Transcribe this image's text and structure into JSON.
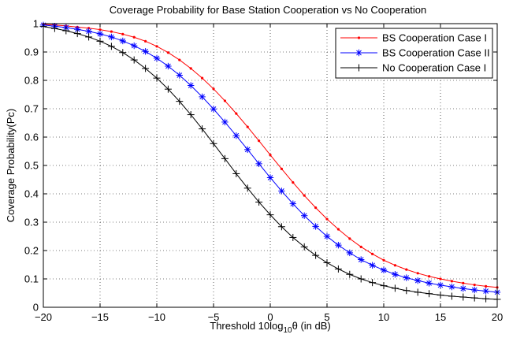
{
  "chart_data": {
    "type": "line",
    "title": "Coverage Probability for Base Station Cooperation vs No Cooperation",
    "xlabel": {
      "prefix": "Threshold 10log",
      "sub": "10",
      "suffix": "θ (in dB)"
    },
    "ylabel": "Coverage Probability(Pc)",
    "xlim": [
      -20,
      20
    ],
    "ylim": [
      0,
      1
    ],
    "x_ticks": [
      -20,
      -15,
      -10,
      -5,
      0,
      5,
      10,
      15,
      20
    ],
    "y_ticks": [
      0,
      0.1,
      0.2,
      0.3,
      0.4,
      0.5,
      0.6,
      0.7,
      0.8,
      0.9,
      1
    ],
    "x_tick_labels": [
      "−20",
      "−15",
      "−10",
      "−5",
      "0",
      "5",
      "10",
      "15",
      "20"
    ],
    "y_tick_labels": [
      "0",
      "0.1",
      "0.2",
      "0.3",
      "0.4",
      "0.5",
      "0.6",
      "0.7",
      "0.8",
      "0.9",
      "1"
    ],
    "grid": true,
    "legend_position": "top-right",
    "x": [
      -20,
      -19,
      -18,
      -17,
      -16,
      -15,
      -14,
      -13,
      -12,
      -11,
      -10,
      -9,
      -8,
      -7,
      -6,
      -5,
      -4,
      -3,
      -2,
      -1,
      0,
      1,
      2,
      3,
      4,
      5,
      6,
      7,
      8,
      9,
      10,
      11,
      12,
      13,
      14,
      15,
      16,
      17,
      18,
      19,
      20
    ],
    "series": [
      {
        "name": "BS Cooperation Case I",
        "color": "#ff0000",
        "marker": "dot",
        "values": [
          0.998,
          0.995,
          0.992,
          0.988,
          0.984,
          0.979,
          0.972,
          0.963,
          0.952,
          0.938,
          0.92,
          0.898,
          0.872,
          0.842,
          0.808,
          0.77,
          0.728,
          0.683,
          0.636,
          0.587,
          0.537,
          0.488,
          0.44,
          0.394,
          0.351,
          0.311,
          0.275,
          0.242,
          0.213,
          0.188,
          0.166,
          0.148,
          0.133,
          0.12,
          0.109,
          0.1,
          0.092,
          0.085,
          0.079,
          0.074,
          0.07
        ]
      },
      {
        "name": "BS Cooperation Case II",
        "color": "#0000ff",
        "marker": "asterisk",
        "values": [
          0.995,
          0.991,
          0.986,
          0.98,
          0.973,
          0.964,
          0.953,
          0.939,
          0.922,
          0.902,
          0.878,
          0.85,
          0.818,
          0.782,
          0.742,
          0.699,
          0.653,
          0.605,
          0.556,
          0.506,
          0.457,
          0.41,
          0.365,
          0.323,
          0.285,
          0.25,
          0.219,
          0.192,
          0.168,
          0.148,
          0.131,
          0.116,
          0.104,
          0.094,
          0.085,
          0.078,
          0.072,
          0.066,
          0.061,
          0.057,
          0.053
        ]
      },
      {
        "name": "No Cooperation Case I",
        "color": "#000000",
        "marker": "plus",
        "values": [
          0.99,
          0.983,
          0.975,
          0.965,
          0.953,
          0.938,
          0.92,
          0.898,
          0.872,
          0.842,
          0.808,
          0.769,
          0.726,
          0.679,
          0.629,
          0.577,
          0.524,
          0.471,
          0.42,
          0.371,
          0.326,
          0.284,
          0.246,
          0.213,
          0.183,
          0.157,
          0.135,
          0.116,
          0.1,
          0.087,
          0.076,
          0.067,
          0.059,
          0.053,
          0.048,
          0.043,
          0.039,
          0.036,
          0.033,
          0.03,
          0.028
        ]
      }
    ]
  }
}
